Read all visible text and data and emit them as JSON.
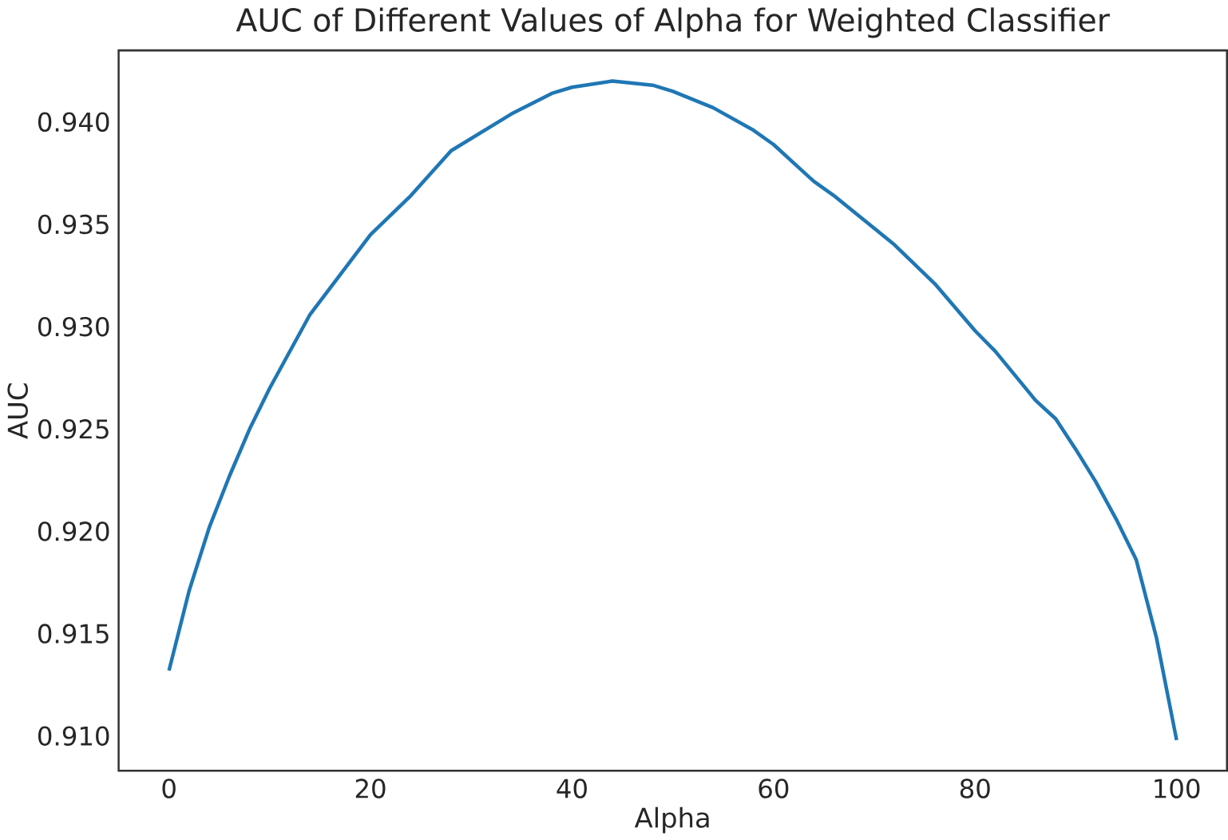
{
  "chart_data": {
    "type": "line",
    "title": "AUC of Different Values of Alpha for Weighted Classifier",
    "xlabel": "Alpha",
    "ylabel": "AUC",
    "x": [
      0,
      2,
      4,
      6,
      8,
      10,
      14,
      20,
      24,
      28,
      34,
      38,
      40,
      44,
      48,
      50,
      54,
      58,
      60,
      62,
      64,
      66,
      70,
      72,
      76,
      80,
      82,
      86,
      88,
      90,
      92,
      94,
      96,
      98,
      100
    ],
    "series": [
      {
        "color": "#1f77b4",
        "values": [
          0.9132,
          0.9171,
          0.9202,
          0.9227,
          0.925,
          0.927,
          0.9306,
          0.9345,
          0.9364,
          0.9386,
          0.9404,
          0.9414,
          0.9417,
          0.942,
          0.9418,
          0.9415,
          0.9407,
          0.9396,
          0.9389,
          0.938,
          0.9371,
          0.9364,
          0.9348,
          0.934,
          0.9321,
          0.9298,
          0.9288,
          0.9264,
          0.9255,
          0.924,
          0.9224,
          0.9206,
          0.9186,
          0.9148,
          0.9098
        ]
      }
    ],
    "xlim": [
      -5,
      105
    ],
    "ylim": [
      0.9083,
      0.9435
    ],
    "xticks": [
      0,
      20,
      40,
      60,
      80,
      100
    ],
    "yticks": [
      {
        "value": 0.91,
        "label": "0.910"
      },
      {
        "value": 0.915,
        "label": "0.915"
      },
      {
        "value": 0.92,
        "label": "0.920"
      },
      {
        "value": 0.925,
        "label": "0.925"
      },
      {
        "value": 0.93,
        "label": "0.930"
      },
      {
        "value": 0.935,
        "label": "0.935"
      },
      {
        "value": 0.94,
        "label": "0.940"
      }
    ],
    "grid": false,
    "marker": "none",
    "line_style": "solid"
  }
}
